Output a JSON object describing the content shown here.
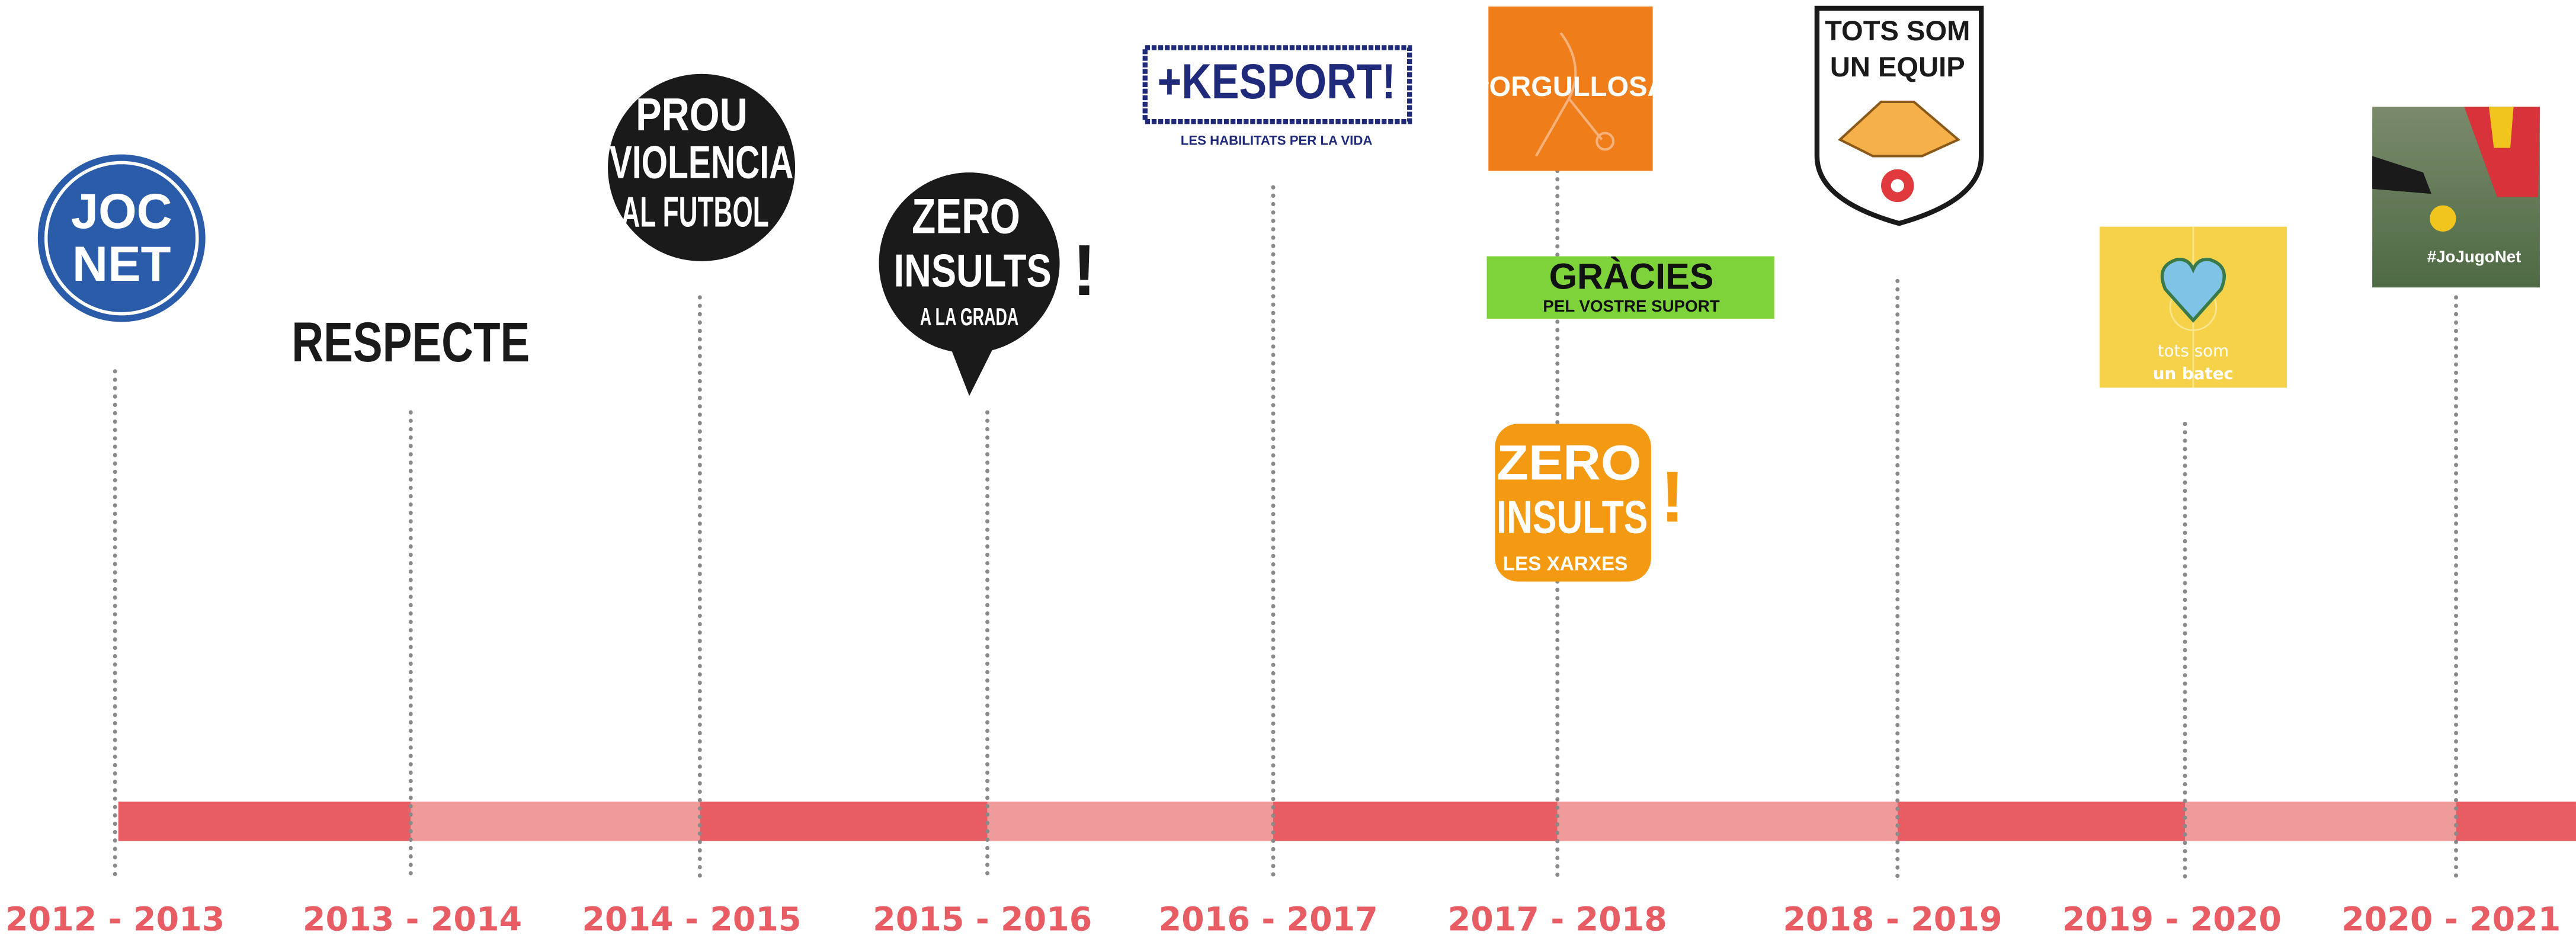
{
  "seasons": [
    "2012 - 2013",
    "2013 - 2014",
    "2014 - 2015",
    "2015 - 2016",
    "2016 - 2017",
    "2017 - 2018",
    "2018 - 2019",
    "2019 - 2020",
    "2020 - 2021"
  ],
  "logos": {
    "joc_net": [
      "JOC",
      "NET"
    ],
    "respecte": [
      "RESPECTE"
    ],
    "prou_violencia": [
      "PROU",
      "VIOLENCIA",
      "AL FUTBOL"
    ],
    "zero_insults_grada": [
      "ZERO",
      "INSULTS",
      "A LA GRADA",
      "!"
    ],
    "kesport": [
      "+KESPORT!",
      "LES HABILITATS PER LA VIDA"
    ],
    "orgullosa": [
      "#ORGULLOSA"
    ],
    "gracies": [
      "GRÀCIES",
      "PEL VOSTRE SUPORT"
    ],
    "zero_insults_xarxes": [
      "ZERO",
      "INSULTS",
      "A LES XARXES",
      "!"
    ],
    "tots_som_un_equip": [
      "TOTS SOM",
      "UN EQUIP"
    ],
    "tots_som_un_batec": [
      "tots som",
      "un batec"
    ],
    "jo_jugo_net": [
      "#JoJugoNet"
    ]
  }
}
